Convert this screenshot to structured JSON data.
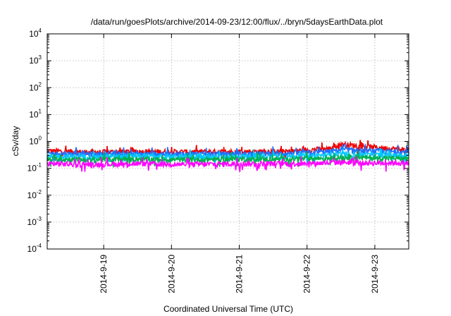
{
  "chart_data": {
    "type": "line",
    "title": "/data/run/goesPlots/archive/2014-09-23/12:00/flux/../bryn/5daysEarthData.plot",
    "xlabel": "Coordinated Universal Time (UTC)",
    "ylabel": "cSv/day",
    "yscale": "log",
    "ylim": [
      0.0001,
      10000
    ],
    "xlim": [
      "2014-09-18 04:00",
      "2014-09-23 12:00"
    ],
    "x_ticks": [
      "2014-9-19",
      "2014-9-20",
      "2014-9-21",
      "2014-9-22",
      "2014-9-23"
    ],
    "y_ticks": [
      {
        "base": "10",
        "exp": "-4"
      },
      {
        "base": "10",
        "exp": "-3"
      },
      {
        "base": "10",
        "exp": "-2"
      },
      {
        "base": "10",
        "exp": "-1"
      },
      {
        "base": "10",
        "exp": "0"
      },
      {
        "base": "10",
        "exp": "1"
      },
      {
        "base": "10",
        "exp": "2"
      },
      {
        "base": "10",
        "exp": "3"
      },
      {
        "base": "10",
        "exp": "4"
      }
    ],
    "grid": true,
    "series": [
      {
        "color": "#ee0000",
        "values": [
          {
            "x": "2014-09-18 04:00",
            "y": 0.45
          },
          {
            "x": "2014-09-18 18:00",
            "y": 0.4
          },
          {
            "x": "2014-09-19 12:00",
            "y": 0.42
          },
          {
            "x": "2014-09-20 06:00",
            "y": 0.41
          },
          {
            "x": "2014-09-21 00:00",
            "y": 0.42
          },
          {
            "x": "2014-09-21 18:00",
            "y": 0.43
          },
          {
            "x": "2014-09-22 08:00",
            "y": 0.55
          },
          {
            "x": "2014-09-22 12:00",
            "y": 0.8
          },
          {
            "x": "2014-09-22 20:00",
            "y": 0.65
          },
          {
            "x": "2014-09-23 12:00",
            "y": 0.48
          }
        ]
      },
      {
        "color": "#1f6fff",
        "values": [
          {
            "x": "2014-09-18 04:00",
            "y": 0.36
          },
          {
            "x": "2014-09-18 18:00",
            "y": 0.34
          },
          {
            "x": "2014-09-19 12:00",
            "y": 0.35
          },
          {
            "x": "2014-09-20 06:00",
            "y": 0.34
          },
          {
            "x": "2014-09-21 00:00",
            "y": 0.35
          },
          {
            "x": "2014-09-21 18:00",
            "y": 0.36
          },
          {
            "x": "2014-09-22 08:00",
            "y": 0.42
          },
          {
            "x": "2014-09-22 12:00",
            "y": 0.5
          },
          {
            "x": "2014-09-22 20:00",
            "y": 0.45
          },
          {
            "x": "2014-09-23 12:00",
            "y": 0.4
          }
        ]
      },
      {
        "color": "#00c8ff",
        "values": [
          {
            "x": "2014-09-18 04:00",
            "y": 0.28
          },
          {
            "x": "2014-09-18 18:00",
            "y": 0.27
          },
          {
            "x": "2014-09-19 12:00",
            "y": 0.28
          },
          {
            "x": "2014-09-20 06:00",
            "y": 0.27
          },
          {
            "x": "2014-09-21 00:00",
            "y": 0.28
          },
          {
            "x": "2014-09-21 18:00",
            "y": 0.28
          },
          {
            "x": "2014-09-22 08:00",
            "y": 0.31
          },
          {
            "x": "2014-09-22 12:00",
            "y": 0.34
          },
          {
            "x": "2014-09-22 20:00",
            "y": 0.32
          },
          {
            "x": "2014-09-23 12:00",
            "y": 0.3
          }
        ]
      },
      {
        "color": "#00b050",
        "values": [
          {
            "x": "2014-09-18 04:00",
            "y": 0.22
          },
          {
            "x": "2014-09-18 18:00",
            "y": 0.21
          },
          {
            "x": "2014-09-19 12:00",
            "y": 0.22
          },
          {
            "x": "2014-09-20 06:00",
            "y": 0.21
          },
          {
            "x": "2014-09-21 00:00",
            "y": 0.22
          },
          {
            "x": "2014-09-21 18:00",
            "y": 0.22
          },
          {
            "x": "2014-09-22 08:00",
            "y": 0.24
          },
          {
            "x": "2014-09-22 12:00",
            "y": 0.26
          },
          {
            "x": "2014-09-22 20:00",
            "y": 0.25
          },
          {
            "x": "2014-09-23 12:00",
            "y": 0.23
          }
        ]
      },
      {
        "color": "#ff00ff",
        "values": [
          {
            "x": "2014-09-18 04:00",
            "y": 0.15
          },
          {
            "x": "2014-09-18 18:00",
            "y": 0.14
          },
          {
            "x": "2014-09-19 12:00",
            "y": 0.15
          },
          {
            "x": "2014-09-20 06:00",
            "y": 0.14
          },
          {
            "x": "2014-09-21 00:00",
            "y": 0.15
          },
          {
            "x": "2014-09-21 18:00",
            "y": 0.15
          },
          {
            "x": "2014-09-22 08:00",
            "y": 0.16
          },
          {
            "x": "2014-09-22 12:00",
            "y": 0.17
          },
          {
            "x": "2014-09-22 20:00",
            "y": 0.16
          },
          {
            "x": "2014-09-23 12:00",
            "y": 0.16
          }
        ]
      }
    ]
  }
}
